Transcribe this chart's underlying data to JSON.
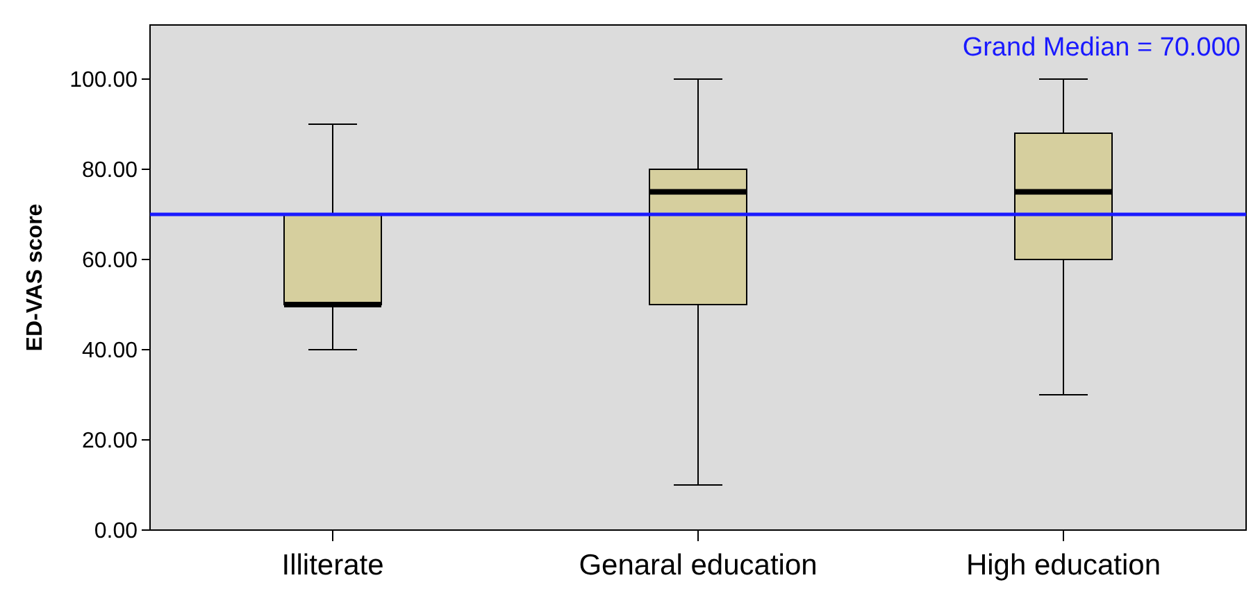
{
  "chart_data": {
    "type": "box",
    "ylabel": "ED-VAS score",
    "categories": [
      "Illiterate",
      "Genaral education",
      "High education"
    ],
    "color": "#d6cf9e",
    "boxes": [
      {
        "low": 40,
        "q1": 50,
        "median": 50,
        "q3": 70,
        "high": 90
      },
      {
        "low": 10,
        "q1": 50,
        "median": 75,
        "q3": 80,
        "high": 100
      },
      {
        "low": 30,
        "q1": 60,
        "median": 75,
        "q3": 88,
        "high": 100
      }
    ],
    "ylim": [
      0,
      112
    ],
    "yticks": [
      {
        "value": 0,
        "label": "0.00"
      },
      {
        "value": 20,
        "label": "20.00"
      },
      {
        "value": 40,
        "label": "40.00"
      },
      {
        "value": 60,
        "label": "60.00"
      },
      {
        "value": 80,
        "label": "80.00"
      },
      {
        "value": 100,
        "label": "100.00"
      }
    ],
    "ref_lines": [
      {
        "axis": "y",
        "value": 70,
        "label": "Grand Median = 70.000",
        "color": "#1a1aff"
      }
    ],
    "grid": false
  }
}
